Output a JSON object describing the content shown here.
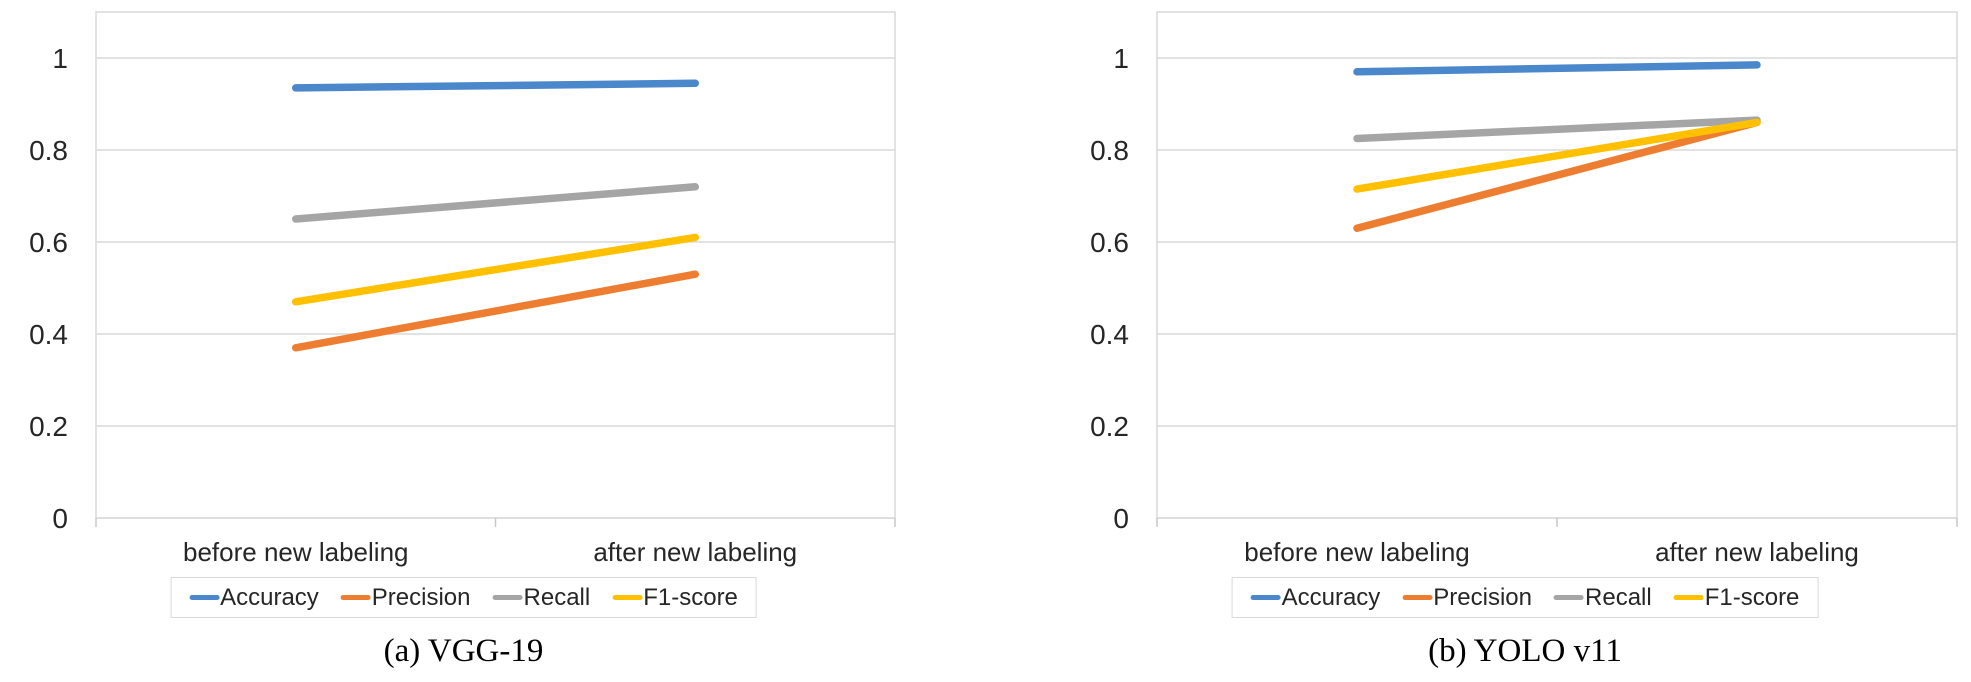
{
  "colors": {
    "gridline": "#d9d9d9",
    "tick": "#c9c9c9",
    "axis_text": "#262626",
    "accuracy": "#4a87cb",
    "precision": "#ed7d31",
    "recall": "#a5a5a5",
    "f1_score": "#ffc000"
  },
  "legend": {
    "items": [
      {
        "label": "Accuracy",
        "color": "#4a87cb"
      },
      {
        "label": "Precision",
        "color": "#ed7d31"
      },
      {
        "label": "Recall",
        "color": "#a5a5a5"
      },
      {
        "label": "F1-score",
        "color": "#ffc000"
      }
    ]
  },
  "chart_data": [
    {
      "type": "line",
      "caption": "(a) VGG-19",
      "categories": [
        "before new labeling",
        "after new labeling"
      ],
      "series": [
        {
          "name": "Accuracy",
          "color": "#4a87cb",
          "values": [
            0.935,
            0.945
          ]
        },
        {
          "name": "Precision",
          "color": "#ed7d31",
          "values": [
            0.37,
            0.53
          ]
        },
        {
          "name": "Recall",
          "color": "#a5a5a5",
          "values": [
            0.65,
            0.72
          ]
        },
        {
          "name": "F1-score",
          "color": "#ffc000",
          "values": [
            0.47,
            0.61
          ]
        }
      ],
      "ylim": [
        0,
        1.1
      ],
      "yticks": [
        0,
        0.2,
        0.4,
        0.6,
        0.8,
        1
      ],
      "ytick_labels": [
        "0",
        "0.2",
        "0.4",
        "0.6",
        "0.8",
        "1"
      ],
      "grid": true,
      "legend_position": "bottom"
    },
    {
      "type": "line",
      "caption": "(b) YOLO v11",
      "categories": [
        "before new labeling",
        "after new labeling"
      ],
      "series": [
        {
          "name": "Accuracy",
          "color": "#4a87cb",
          "values": [
            0.97,
            0.985
          ]
        },
        {
          "name": "Precision",
          "color": "#ed7d31",
          "values": [
            0.63,
            0.86
          ]
        },
        {
          "name": "Recall",
          "color": "#a5a5a5",
          "values": [
            0.825,
            0.865
          ]
        },
        {
          "name": "F1-score",
          "color": "#ffc000",
          "values": [
            0.715,
            0.86
          ]
        }
      ],
      "ylim": [
        0,
        1.1
      ],
      "yticks": [
        0,
        0.2,
        0.4,
        0.6,
        0.8,
        1
      ],
      "ytick_labels": [
        "0",
        "0.2",
        "0.4",
        "0.6",
        "0.8",
        "1"
      ],
      "grid": true,
      "legend_position": "bottom"
    }
  ]
}
